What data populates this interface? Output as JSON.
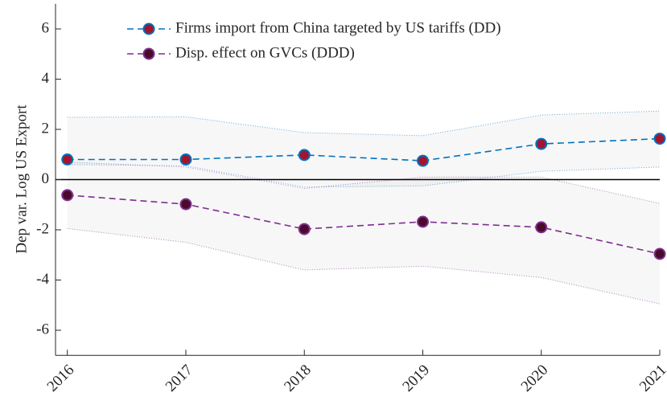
{
  "chart_data": {
    "type": "line",
    "y_label": "Dep var. Log US Export",
    "x": [
      2016,
      2017,
      2018,
      2019,
      2020,
      2021
    ],
    "xlim": [
      2015.9,
      2021
    ],
    "xticks": [
      2016,
      2017,
      2018,
      2019,
      2020,
      2021
    ],
    "ylim": [
      -7,
      7
    ],
    "yticks": [
      -6,
      -4,
      -2,
      0,
      2,
      4,
      6
    ],
    "hline": 0,
    "legend": "upper left",
    "series": [
      {
        "name": "Firms import from China targeted by US tariffs  (DD)",
        "color": "#0072bd",
        "marker_color": "#a2142f",
        "values": [
          0.8,
          0.8,
          0.98,
          0.75,
          1.42,
          1.63
        ],
        "upper": [
          2.48,
          2.5,
          1.87,
          1.75,
          2.57,
          2.73
        ],
        "lower": [
          0.6,
          0.55,
          -0.3,
          -0.25,
          0.33,
          0.5
        ]
      },
      {
        "name": "Disp. effect on GVCs (DDD)",
        "color": "#7e2f8e",
        "marker_color": "#4a0a2a",
        "values": [
          -0.62,
          -0.98,
          -1.97,
          -1.68,
          -1.9,
          -2.96
        ],
        "upper": [
          0.7,
          0.5,
          -0.35,
          0.1,
          0.1,
          -0.95
        ],
        "lower": [
          -1.95,
          -2.5,
          -3.6,
          -3.45,
          -3.9,
          -4.95
        ]
      }
    ]
  }
}
